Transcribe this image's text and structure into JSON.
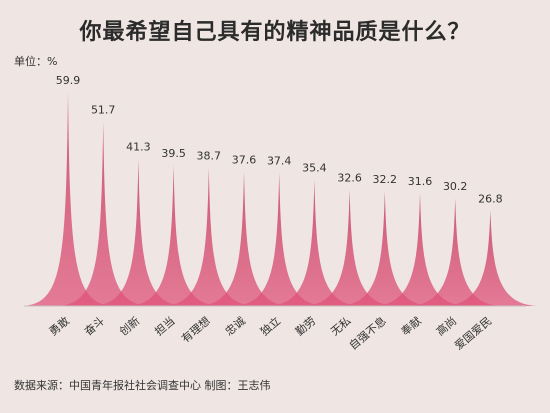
{
  "title": "你最希望自己具有的精神品质是什么？",
  "unit_label": "单位：%",
  "source_note": "数据来源：中国青年报社社会调查中心  制图：王志伟",
  "colors": {
    "background": "#efe6e3",
    "spike": "#e0547a",
    "spike_dark": "#c23358"
  },
  "chart_data": {
    "type": "area",
    "title": "你最希望自己具有的精神品质是什么？",
    "ylabel": "%",
    "categories": [
      "勇敢",
      "奋斗",
      "创新",
      "担当",
      "有理想",
      "忠诚",
      "独立",
      "勤劳",
      "无私",
      "自强不息",
      "奉献",
      "高尚",
      "爱国爱民"
    ],
    "values": [
      59.9,
      51.7,
      41.3,
      39.5,
      38.7,
      37.6,
      37.4,
      35.4,
      32.6,
      32.2,
      31.6,
      30.2,
      26.8
    ],
    "value_labels": [
      "59.9",
      "51.7",
      "41.3",
      "39.5",
      "38.7",
      "37.6",
      "37.4",
      "35.4",
      "32.6",
      "32.2",
      "31.6",
      "30.2",
      "26.8"
    ],
    "ylim": [
      0,
      60
    ],
    "grid": false,
    "legend": "none"
  }
}
